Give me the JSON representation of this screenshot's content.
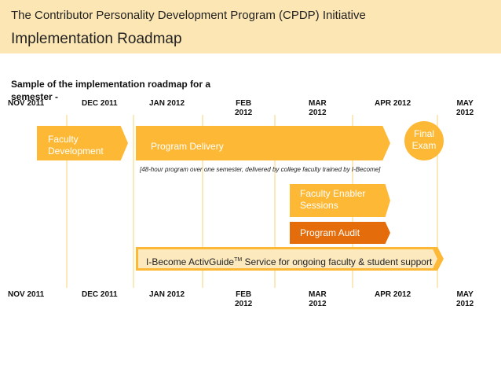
{
  "header": {
    "title": "The Contributor Personality Development Program (CPDP) Initiative",
    "subtitle": "Implementation Roadmap"
  },
  "caption": "Sample of the implementation roadmap for a semester -",
  "months": [
    "NOV 2011",
    "DEC 2011",
    "JAN 2012",
    "FEB\n2012",
    "MAR\n2012",
    "APR 2012",
    "MAY\n2012"
  ],
  "boxes": {
    "faculty_development": "Faculty Development",
    "program_delivery": "Program Delivery",
    "program_note": "[48-hour program over one semester, delivered by college faculty trained by I-Become]",
    "final_exam": "Final Exam",
    "faculty_enabler": "Faculty Enabler Sessions",
    "program_audit": "Program Audit",
    "service_prefix": "I-Become ActivGuide",
    "service_tm": "TM",
    "service_suffix": " Service for ongoing faculty & student support"
  },
  "colors": {
    "header_bg": "#fce6b3",
    "bar": "#fdb936",
    "audit": "#e46c0a",
    "gridline": "#fbe8bb"
  }
}
